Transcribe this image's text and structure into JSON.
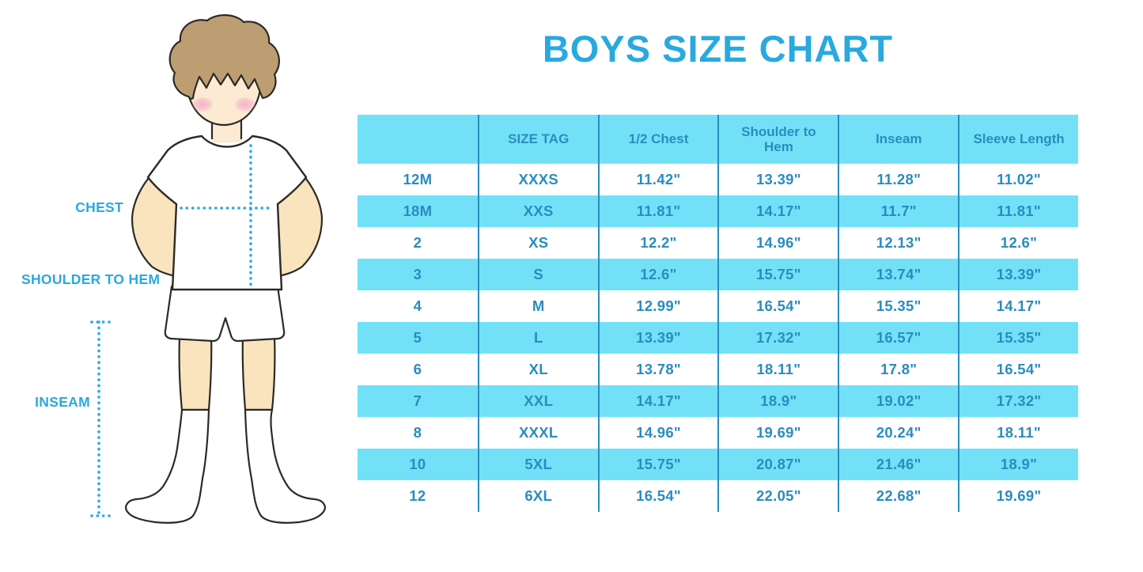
{
  "page": {
    "title": "BOYS SIZE CHART"
  },
  "figure": {
    "description": "line drawing of a boy in white t-shirt, shorts and knee socks with measurement guides",
    "labels": {
      "chest": "CHEST",
      "shoulder_to_hem": "SHOULDER TO HEM",
      "inseam": "INSEAM"
    }
  },
  "colors": {
    "accent": "#29a9e0",
    "cyan": "#72e1f8",
    "ink": "#2a8cbe",
    "hair": "#bd9e73",
    "skin": "#f9e4be",
    "face": "#fcebd2",
    "cheek": "#f2a9c6",
    "outline": "#2d2a26"
  },
  "chart_data": {
    "type": "table",
    "title": "BOYS SIZE CHART",
    "columns": [
      "",
      "SIZE TAG",
      "1/2 Chest",
      "Shoulder to Hem",
      "Inseam",
      "Sleeve Length"
    ],
    "rows": [
      [
        "12M",
        "XXXS",
        "11.42\"",
        "13.39\"",
        "11.28\"",
        "11.02\""
      ],
      [
        "18M",
        "XXS",
        "11.81\"",
        "14.17\"",
        "11.7\"",
        "11.81\""
      ],
      [
        "2",
        "XS",
        "12.2\"",
        "14.96\"",
        "12.13\"",
        "12.6\""
      ],
      [
        "3",
        "S",
        "12.6\"",
        "15.75\"",
        "13.74\"",
        "13.39\""
      ],
      [
        "4",
        "M",
        "12.99\"",
        "16.54\"",
        "15.35\"",
        "14.17\""
      ],
      [
        "5",
        "L",
        "13.39\"",
        "17.32\"",
        "16.57\"",
        "15.35\""
      ],
      [
        "6",
        "XL",
        "13.78\"",
        "18.11\"",
        "17.8\"",
        "16.54\""
      ],
      [
        "7",
        "XXL",
        "14.17\"",
        "18.9\"",
        "19.02\"",
        "17.32\""
      ],
      [
        "8",
        "XXXL",
        "14.96\"",
        "19.69\"",
        "20.24\"",
        "18.11\""
      ],
      [
        "10",
        "5XL",
        "15.75\"",
        "20.87\"",
        "21.46\"",
        "18.9\""
      ],
      [
        "12",
        "6XL",
        "16.54\"",
        "22.05\"",
        "22.68\"",
        "19.69\""
      ]
    ],
    "stripe_pattern": "header cyan, then data rows alternate white/cyan starting with white",
    "grid": "vertical column separators only",
    "legend_position": "none"
  }
}
